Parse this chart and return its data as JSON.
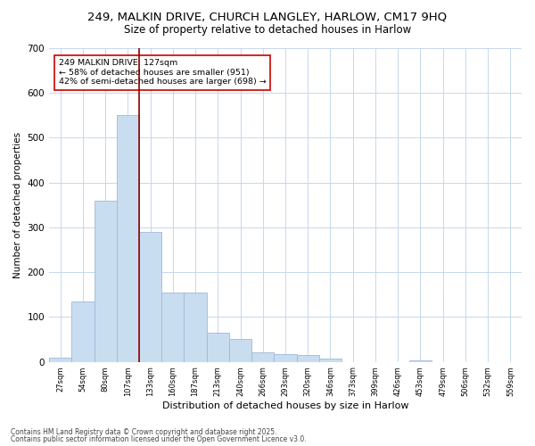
{
  "title1": "249, MALKIN DRIVE, CHURCH LANGLEY, HARLOW, CM17 9HQ",
  "title2": "Size of property relative to detached houses in Harlow",
  "xlabel": "Distribution of detached houses by size in Harlow",
  "ylabel": "Number of detached properties",
  "categories": [
    "27sqm",
    "54sqm",
    "80sqm",
    "107sqm",
    "133sqm",
    "160sqm",
    "187sqm",
    "213sqm",
    "240sqm",
    "266sqm",
    "293sqm",
    "320sqm",
    "346sqm",
    "373sqm",
    "399sqm",
    "426sqm",
    "453sqm",
    "479sqm",
    "506sqm",
    "532sqm",
    "559sqm"
  ],
  "values": [
    10,
    135,
    360,
    550,
    290,
    155,
    155,
    65,
    50,
    22,
    18,
    15,
    7,
    0,
    0,
    0,
    3,
    0,
    0,
    0,
    0
  ],
  "bar_color": "#c9ddf0",
  "bar_edge_color": "#a0b8d8",
  "vline_color": "#8b0000",
  "annotation_text": "249 MALKIN DRIVE: 127sqm\n← 58% of detached houses are smaller (951)\n42% of semi-detached houses are larger (698) →",
  "annotation_box_color": "#ffffff",
  "annotation_box_edge": "#cc0000",
  "ylim": [
    0,
    700
  ],
  "yticks": [
    0,
    100,
    200,
    300,
    400,
    500,
    600,
    700
  ],
  "footer1": "Contains HM Land Registry data © Crown copyright and database right 2025.",
  "footer2": "Contains public sector information licensed under the Open Government Licence v3.0.",
  "bg_color": "#ffffff",
  "grid_color": "#c5d8ee",
  "title_fontsize": 9.5,
  "subtitle_fontsize": 8.5,
  "vline_pos": 3.5
}
